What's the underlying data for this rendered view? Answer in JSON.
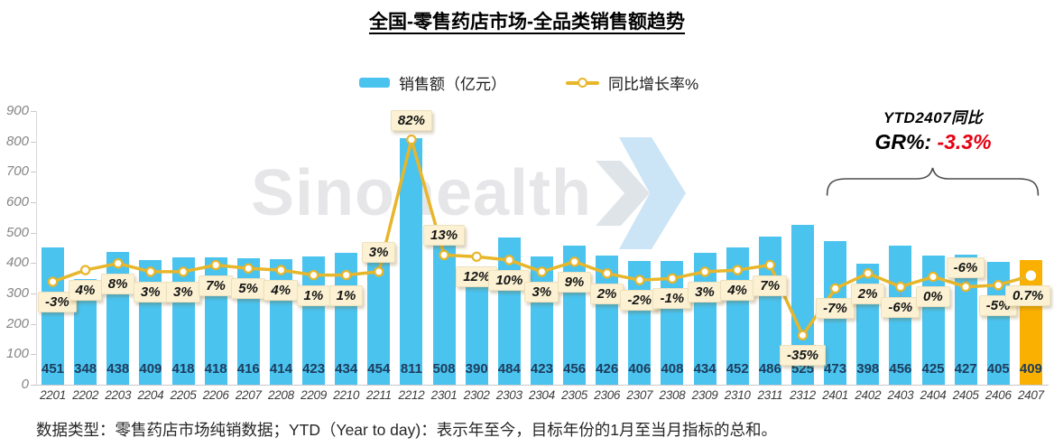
{
  "title": "全国-零售药店市场-全品类销售额趋势",
  "legend": {
    "bar_label": "销售额（亿元）",
    "line_label": "同比增长率%"
  },
  "annotation": {
    "line1": "YTD2407同比",
    "gr_prefix": "GR%: ",
    "gr_value": "-3.3%"
  },
  "watermark": {
    "text": "Sinohealth"
  },
  "footnote": "数据类型：零售药店市场纯销数据；YTD（Year to day)：表示年至今，目标年份的1月至当月指标的总和。",
  "colors": {
    "bar": "#4ac3ef",
    "bar_highlight": "#f9b001",
    "line": "#e8b62a",
    "marker_fill": "#ffffff",
    "label_box_bg": "#fcf2d3",
    "value_text": "#1e3c5c",
    "gr_red": "#e60012",
    "brace": "#4d4d4d"
  },
  "chart_data": {
    "type": "bar",
    "title": "全国-零售药店市场-全品类销售额趋势",
    "xlabel": "",
    "ylabel": "",
    "categories": [
      "2201",
      "2202",
      "2203",
      "2204",
      "2205",
      "2206",
      "2207",
      "2208",
      "2209",
      "2210",
      "2211",
      "2212",
      "2301",
      "2302",
      "2303",
      "2304",
      "2305",
      "2306",
      "2307",
      "2308",
      "2309",
      "2310",
      "2311",
      "2312",
      "2401",
      "2402",
      "2403",
      "2404",
      "2405",
      "2406",
      "2407"
    ],
    "series": [
      {
        "name": "销售额（亿元）",
        "type": "bar",
        "values": [
          451,
          348,
          438,
          409,
          418,
          418,
          416,
          414,
          423,
          434,
          454,
          811,
          508,
          390,
          484,
          423,
          456,
          426,
          406,
          408,
          434,
          452,
          486,
          525,
          473,
          398,
          456,
          425,
          427,
          405,
          409
        ]
      },
      {
        "name": "同比增长率%",
        "type": "line",
        "values": [
          -3,
          4,
          8,
          3,
          3,
          7,
          5,
          4,
          1,
          1,
          3,
          82,
          13,
          12,
          10,
          3,
          9,
          2,
          -2,
          -1,
          3,
          4,
          7,
          -35,
          -7,
          2,
          -6,
          0,
          -6,
          -5,
          0.7
        ],
        "labels": [
          "-3%",
          "4%",
          "8%",
          "3%",
          "3%",
          "7%",
          "5%",
          "4%",
          "1%",
          "1%",
          "3%",
          "82%",
          "13%",
          "12%",
          "10%",
          "3%",
          "9%",
          "2%",
          "-2%",
          "-1%",
          "3%",
          "4%",
          "7%",
          "-35%",
          "-7%",
          "2%",
          "-6%",
          "0%",
          "-6%",
          "-5%",
          "0.7%"
        ]
      }
    ],
    "highlight_last_bar": true,
    "label_above_indices": [
      10,
      11,
      12,
      28
    ],
    "connector_indices": [
      26,
      28
    ],
    "ytd_span_indices": [
      24,
      30
    ],
    "y_axis": {
      "min": 0,
      "max": 900,
      "step": 100,
      "ticks": [
        "0",
        "100",
        "200",
        "300",
        "400",
        "500",
        "600",
        "700",
        "800",
        "900"
      ]
    },
    "grid": false,
    "legend_position": "top-center"
  }
}
